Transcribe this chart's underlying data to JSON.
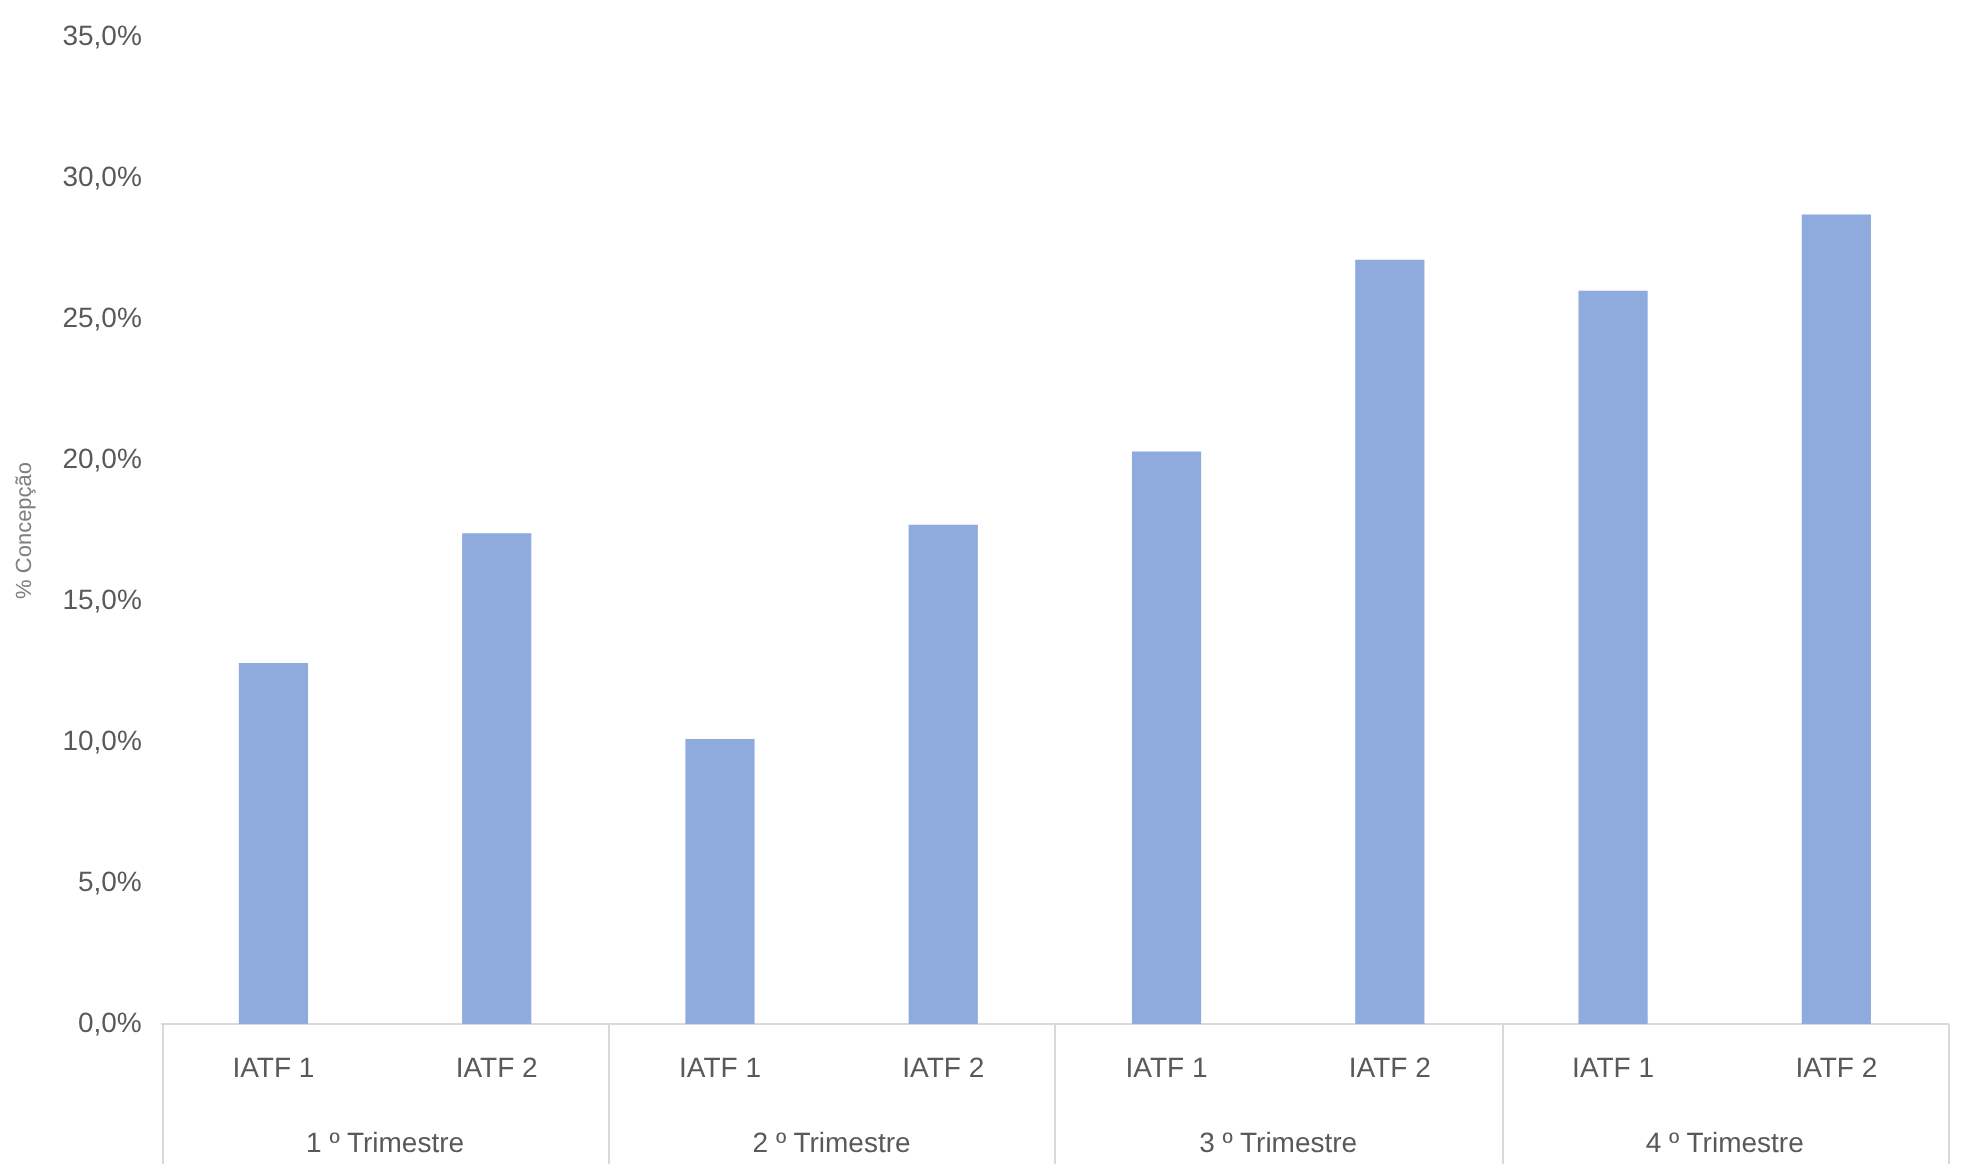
{
  "chart_data": {
    "type": "bar",
    "ylabel": "% Concepção",
    "categories": [
      "IATF 1",
      "IATF 2",
      "IATF 1",
      "IATF 2",
      "IATF 1",
      "IATF 2",
      "IATF 1",
      "IATF 2"
    ],
    "values": [
      12.8,
      17.4,
      10.1,
      17.7,
      20.3,
      27.1,
      26.0,
      28.7
    ],
    "color": "#8faadc",
    "ylim": [
      0,
      35
    ],
    "yticks": [
      {
        "value": 0,
        "label": "0,0%"
      },
      {
        "value": 5,
        "label": "5,0%"
      },
      {
        "value": 10,
        "label": "10,0%"
      },
      {
        "value": 15,
        "label": "15,0%"
      },
      {
        "value": 20,
        "label": "20,0%"
      },
      {
        "value": 25,
        "label": "25,0%"
      },
      {
        "value": 30,
        "label": "30,0%"
      },
      {
        "value": 35,
        "label": "35,0%"
      }
    ],
    "annotations": [
      "1 º Trimestre",
      "2 º Trimestre",
      "3 º Trimestre",
      "4 º Trimestre"
    ],
    "grid": false,
    "legend": false
  }
}
